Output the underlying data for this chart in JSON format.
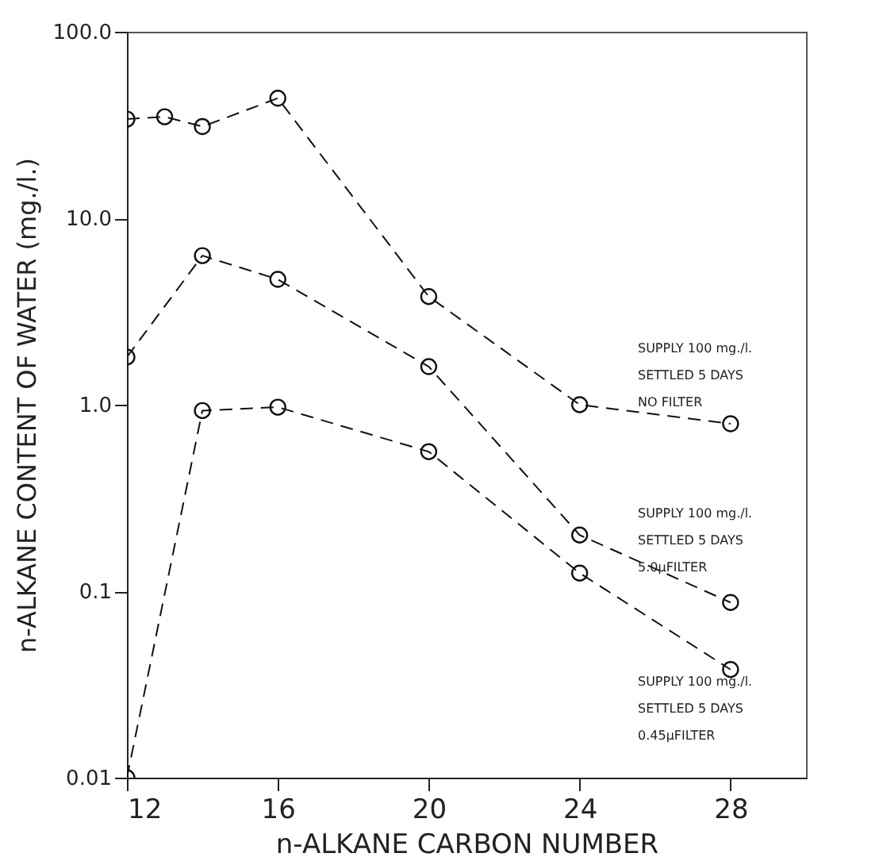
{
  "chart_data": {
    "type": "line",
    "xlabel": "n-ALKANE CARBON NUMBER",
    "ylabel": "n-ALKANE CONTENT OF WATER (mg./l.)",
    "log": "y",
    "xlim": [
      12,
      30
    ],
    "xticks": [
      12,
      16,
      20,
      24,
      28
    ],
    "ylim": [
      0.01,
      100
    ],
    "yticks": [
      {
        "value": 100,
        "label": "100.0"
      },
      {
        "value": 10,
        "label": "10.0"
      },
      {
        "value": 1,
        "label": "1.0"
      },
      0.1,
      0.01
    ],
    "grid": false,
    "marker": "circle",
    "line_style": "dashed",
    "series": [
      {
        "color": "#111111",
        "x": [
          12,
          13,
          14,
          16,
          20,
          24,
          28
        ],
        "values": [
          34,
          35,
          31,
          44,
          3.8,
          1.0,
          0.79
        ]
      },
      {
        "color": "#111111",
        "x": [
          12,
          14,
          16,
          20,
          24,
          28
        ],
        "values": [
          1.8,
          6.3,
          4.7,
          1.6,
          0.2,
          0.087
        ]
      },
      {
        "color": "#111111",
        "x": [
          12,
          14,
          16,
          20,
          24,
          28
        ],
        "values": [
          0.01,
          0.93,
          0.97,
          0.56,
          0.125,
          0.038
        ]
      }
    ],
    "annotations": [
      "SUPPLY 100 mg./l.\nSETTLED 5 DAYS\nNO FILTER",
      "SUPPLY 100 mg./l.\nSETTLED 5 DAYS\n5.0μFILTER",
      "SUPPLY 100 mg./l.\nSETTLED 5 DAYS\n0.45μFILTER"
    ]
  }
}
